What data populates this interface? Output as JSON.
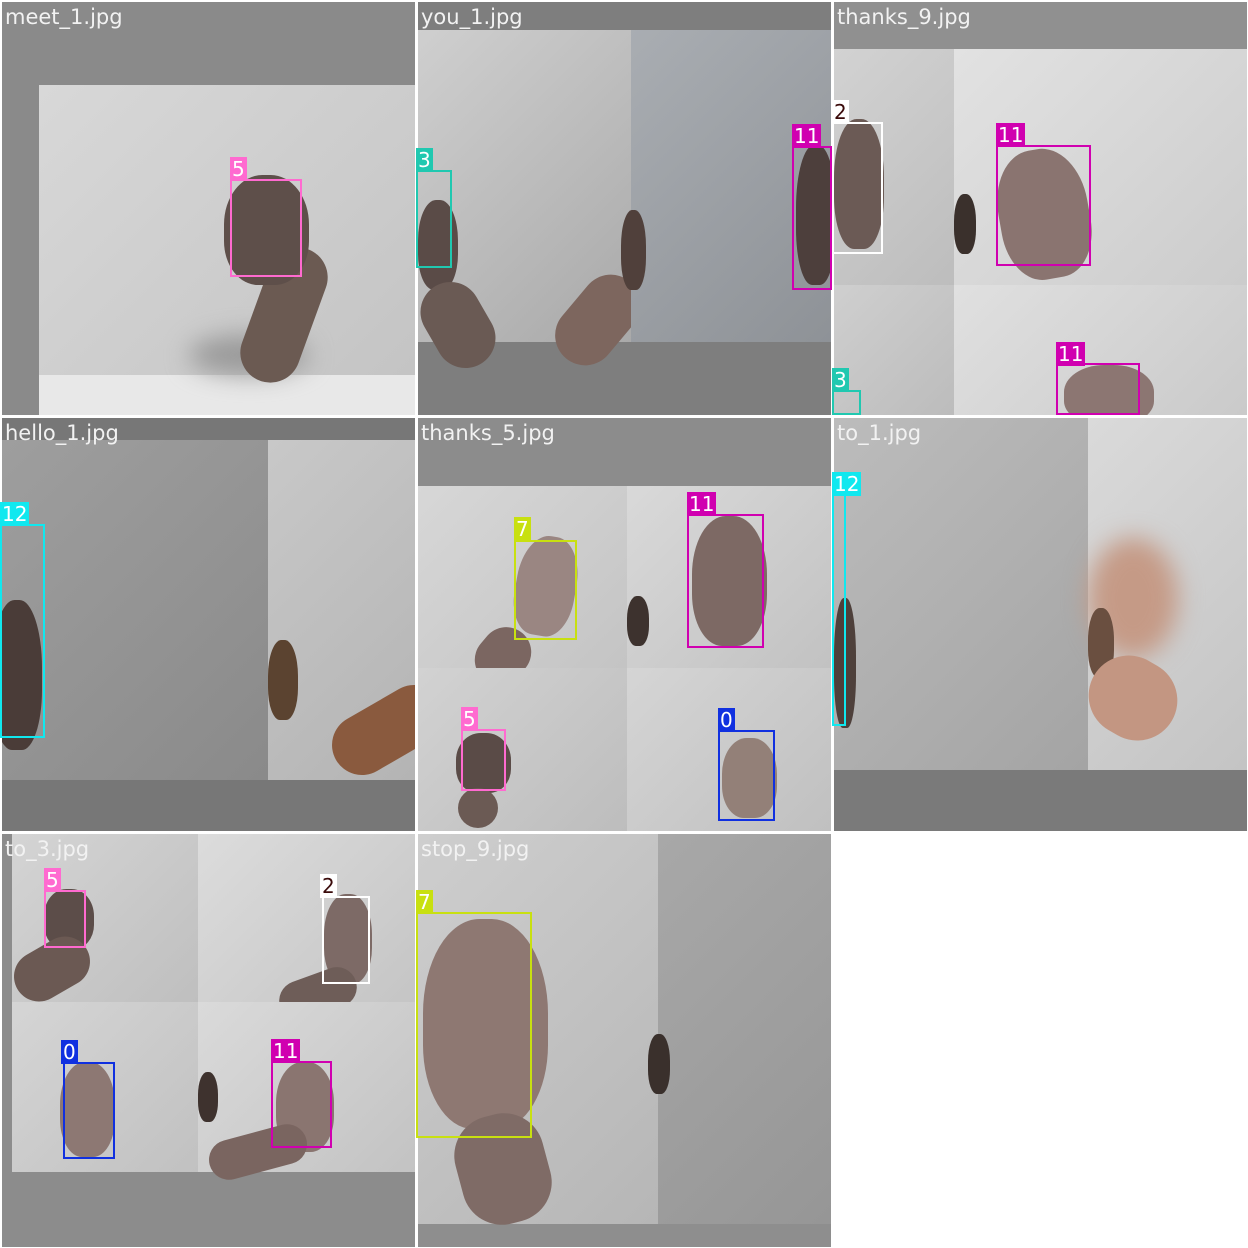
{
  "grid": {
    "tiles": [
      {
        "filename": "meet_1.jpg"
      },
      {
        "filename": "you_1.jpg"
      },
      {
        "filename": "thanks_9.jpg"
      },
      {
        "filename": "hello_1.jpg"
      },
      {
        "filename": "thanks_5.jpg"
      },
      {
        "filename": "to_1.jpg"
      },
      {
        "filename": "to_3.jpg"
      },
      {
        "filename": "stop_9.jpg"
      }
    ]
  },
  "label_colors": {
    "0": "#1030e0",
    "2": "#ffffff",
    "3": "#20c8b0",
    "5": "#ff6ad0",
    "7": "#c8e010",
    "11": "#d000b0",
    "12": "#10e8ef"
  },
  "detections": [
    {
      "tile": "meet_1.jpg",
      "class_label": "5"
    },
    {
      "tile": "you_1.jpg",
      "class_label": "3"
    },
    {
      "tile": "you_1.jpg",
      "class_label": "11"
    },
    {
      "tile": "thanks_9.jpg",
      "class_label": "2"
    },
    {
      "tile": "thanks_9.jpg",
      "class_label": "11"
    },
    {
      "tile": "thanks_9.jpg",
      "class_label": "3"
    },
    {
      "tile": "thanks_9.jpg",
      "class_label": "11"
    },
    {
      "tile": "hello_1.jpg",
      "class_label": "12"
    },
    {
      "tile": "thanks_5.jpg",
      "class_label": "7"
    },
    {
      "tile": "thanks_5.jpg",
      "class_label": "11"
    },
    {
      "tile": "thanks_5.jpg",
      "class_label": "5"
    },
    {
      "tile": "thanks_5.jpg",
      "class_label": "0"
    },
    {
      "tile": "to_1.jpg",
      "class_label": "12"
    },
    {
      "tile": "to_3.jpg",
      "class_label": "5"
    },
    {
      "tile": "to_3.jpg",
      "class_label": "2"
    },
    {
      "tile": "to_3.jpg",
      "class_label": "0"
    },
    {
      "tile": "to_3.jpg",
      "class_label": "11"
    },
    {
      "tile": "stop_9.jpg",
      "class_label": "7"
    }
  ]
}
